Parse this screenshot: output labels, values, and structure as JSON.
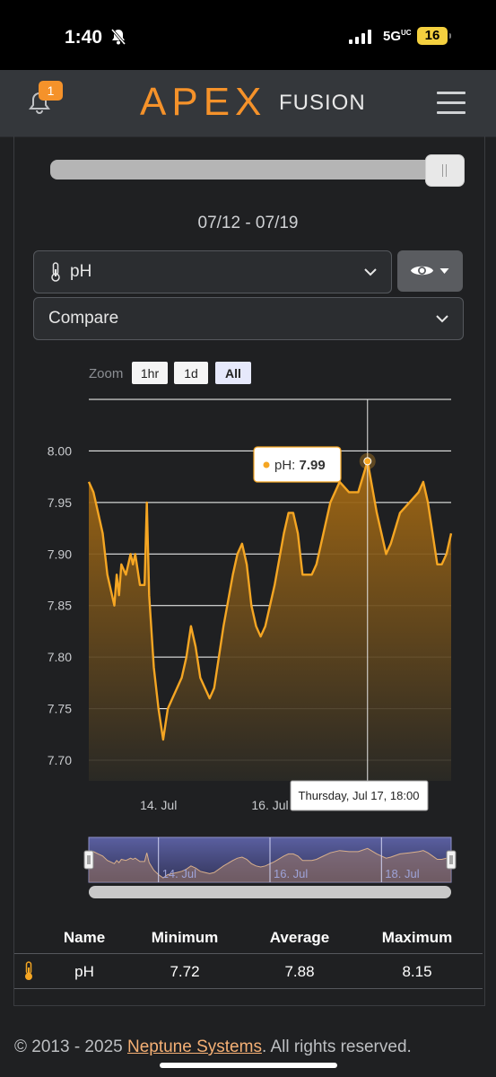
{
  "status_bar": {
    "time": "1:40",
    "network": "5G",
    "network_sup": "UC",
    "battery": "16"
  },
  "header": {
    "notification_count": "1",
    "logo_apex": "APEX",
    "logo_fusion": "FUSION"
  },
  "date_range": "07/12 - 07/19",
  "probe_select": {
    "value": "pH"
  },
  "compare_select": {
    "value": "Compare"
  },
  "zoom": {
    "label": "Zoom",
    "buttons": [
      "1hr",
      "1d",
      "All"
    ],
    "selected": "All"
  },
  "tooltip": {
    "series": "pH",
    "value": "7.99",
    "date": "Thursday, Jul 17, 18:00"
  },
  "navigator_labels": [
    "14. Jul",
    "16. Jul",
    "18. Jul"
  ],
  "chart_data": {
    "type": "area",
    "series": [
      {
        "name": "pH",
        "color": "#f5a623"
      }
    ],
    "y_ticks": [
      "7.70",
      "7.75",
      "7.80",
      "7.85",
      "7.90",
      "7.95",
      "8.00"
    ],
    "ylim": [
      7.68,
      8.05
    ],
    "x_ticks": [
      "14. Jul",
      "16. Jul"
    ],
    "x_start": "2025-07-12T18:00",
    "x_end": "2025-07-19T06:00",
    "points": [
      [
        "07-12 18:00",
        7.97
      ],
      [
        "07-12 20:00",
        7.96
      ],
      [
        "07-12 22:00",
        7.94
      ],
      [
        "07-13 00:00",
        7.92
      ],
      [
        "07-13 02:00",
        7.88
      ],
      [
        "07-13 04:00",
        7.86
      ],
      [
        "07-13 05:00",
        7.85
      ],
      [
        "07-13 06:00",
        7.88
      ],
      [
        "07-13 07:00",
        7.86
      ],
      [
        "07-13 08:00",
        7.89
      ],
      [
        "07-13 10:00",
        7.88
      ],
      [
        "07-13 12:00",
        7.9
      ],
      [
        "07-13 13:00",
        7.89
      ],
      [
        "07-13 14:00",
        7.9
      ],
      [
        "07-13 16:00",
        7.87
      ],
      [
        "07-13 18:00",
        7.87
      ],
      [
        "07-13 19:00",
        7.95
      ],
      [
        "07-13 20:00",
        7.86
      ],
      [
        "07-13 22:00",
        7.79
      ],
      [
        "07-14 00:00",
        7.75
      ],
      [
        "07-14 02:00",
        7.72
      ],
      [
        "07-14 04:00",
        7.75
      ],
      [
        "07-14 06:00",
        7.76
      ],
      [
        "07-14 08:00",
        7.77
      ],
      [
        "07-14 10:00",
        7.78
      ],
      [
        "07-14 12:00",
        7.8
      ],
      [
        "07-14 14:00",
        7.83
      ],
      [
        "07-14 16:00",
        7.81
      ],
      [
        "07-14 18:00",
        7.78
      ],
      [
        "07-14 20:00",
        7.77
      ],
      [
        "07-14 22:00",
        7.76
      ],
      [
        "07-15 00:00",
        7.77
      ],
      [
        "07-15 04:00",
        7.83
      ],
      [
        "07-15 08:00",
        7.88
      ],
      [
        "07-15 10:00",
        7.9
      ],
      [
        "07-15 12:00",
        7.91
      ],
      [
        "07-15 14:00",
        7.89
      ],
      [
        "07-15 16:00",
        7.85
      ],
      [
        "07-15 18:00",
        7.83
      ],
      [
        "07-15 20:00",
        7.82
      ],
      [
        "07-15 22:00",
        7.83
      ],
      [
        "07-16 02:00",
        7.87
      ],
      [
        "07-16 06:00",
        7.92
      ],
      [
        "07-16 08:00",
        7.94
      ],
      [
        "07-16 10:00",
        7.94
      ],
      [
        "07-16 12:00",
        7.92
      ],
      [
        "07-16 14:00",
        7.88
      ],
      [
        "07-16 16:00",
        7.88
      ],
      [
        "07-16 18:00",
        7.88
      ],
      [
        "07-16 20:00",
        7.89
      ],
      [
        "07-16 22:00",
        7.91
      ],
      [
        "07-17 02:00",
        7.95
      ],
      [
        "07-17 06:00",
        7.97
      ],
      [
        "07-17 10:00",
        7.96
      ],
      [
        "07-17 14:00",
        7.96
      ],
      [
        "07-17 18:00",
        7.99
      ],
      [
        "07-17 22:00",
        7.94
      ],
      [
        "07-18 00:00",
        7.92
      ],
      [
        "07-18 02:00",
        7.9
      ],
      [
        "07-18 04:00",
        7.91
      ],
      [
        "07-18 08:00",
        7.94
      ],
      [
        "07-18 12:00",
        7.95
      ],
      [
        "07-18 16:00",
        7.96
      ],
      [
        "07-18 18:00",
        7.97
      ],
      [
        "07-18 20:00",
        7.95
      ],
      [
        "07-18 22:00",
        7.92
      ],
      [
        "07-19 00:00",
        7.89
      ],
      [
        "07-19 02:00",
        7.89
      ],
      [
        "07-19 04:00",
        7.9
      ],
      [
        "07-19 06:00",
        7.92
      ]
    ],
    "grid": true
  },
  "stats_table": {
    "headers": {
      "name": "Name",
      "minimum": "Minimum",
      "average": "Average",
      "maximum": "Maximum"
    },
    "row": {
      "name": "pH",
      "minimum": "7.72",
      "average": "7.88",
      "maximum": "8.15"
    }
  },
  "footer": {
    "copyright": "© 2013 - 2025 ",
    "link": "Neptune Systems",
    "rest": ". All rights reserved."
  }
}
